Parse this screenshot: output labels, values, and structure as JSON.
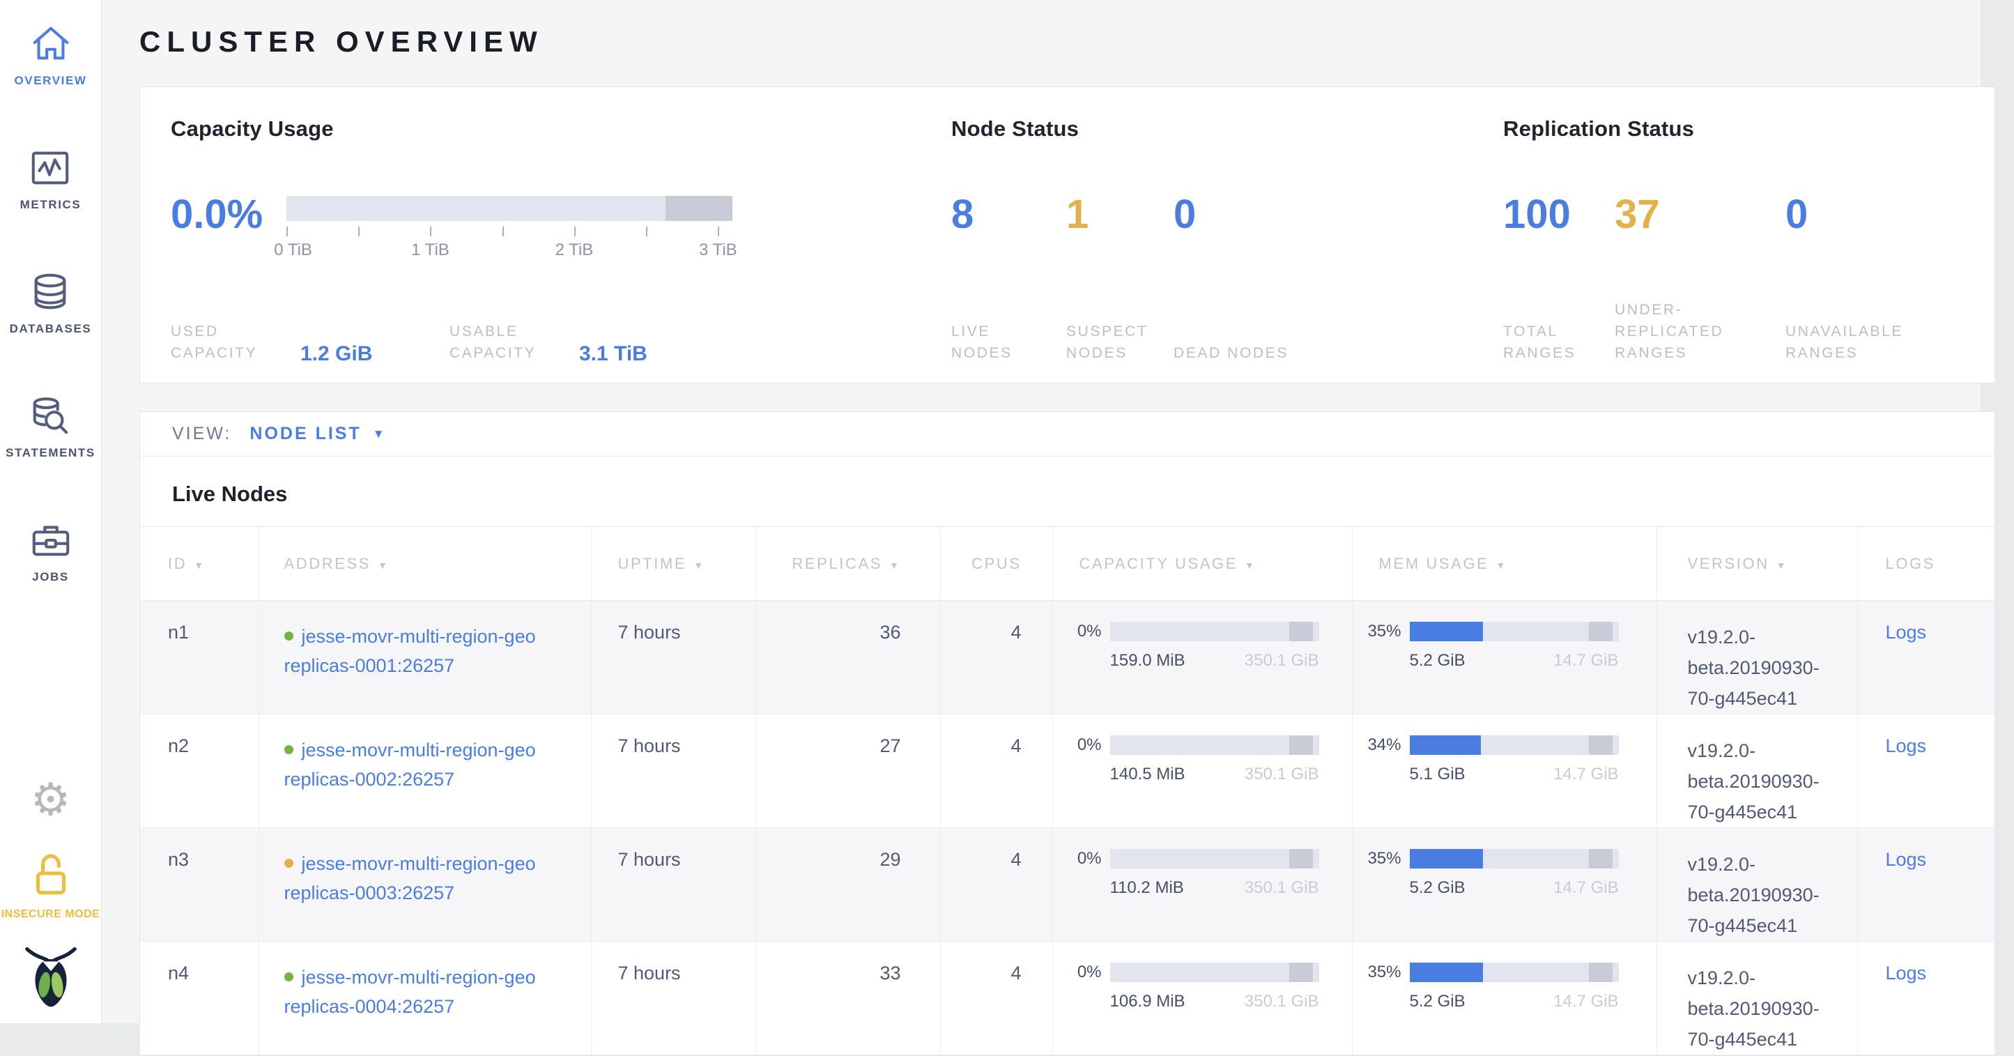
{
  "colors": {
    "accent_blue": "#4a7de2",
    "warning_yellow": "#e2b14b",
    "success_green": "#76b441",
    "insecure_yellow": "#ecbe3d"
  },
  "icons": {
    "sort": "▼",
    "caret": "▼",
    "gear": "⚙"
  },
  "page": {
    "title": "CLUSTER OVERVIEW"
  },
  "sidebar": {
    "items": [
      {
        "label": "OVERVIEW"
      },
      {
        "label": "METRICS"
      },
      {
        "label": "DATABASES"
      },
      {
        "label": "STATEMENTS"
      },
      {
        "label": "JOBS"
      }
    ],
    "insecure_label": "INSECURE MODE"
  },
  "summary": {
    "capacity": {
      "title": "Capacity Usage",
      "used_percent": "0.0%",
      "tick_labels": [
        "0 TiB",
        "1 TiB",
        "2 TiB",
        "3 TiB"
      ],
      "used_label": "USED CAPACITY",
      "used_value": "1.2 GiB",
      "usable_label": "USABLE CAPACITY",
      "usable_value": "3.1 TiB"
    },
    "nodes": {
      "title": "Node Status",
      "stats": [
        {
          "value": "8",
          "label": "LIVE NODES",
          "color": "blue"
        },
        {
          "value": "1",
          "label": "SUSPECT NODES",
          "color": "yellow"
        },
        {
          "value": "0",
          "label": "DEAD NODES",
          "color": "blue"
        }
      ]
    },
    "replication": {
      "title": "Replication Status",
      "stats": [
        {
          "value": "100",
          "label": "TOTAL RANGES",
          "color": "blue"
        },
        {
          "value": "37",
          "label": "UNDER-REPLICATED RANGES",
          "color": "yellow"
        },
        {
          "value": "0",
          "label": "UNAVAILABLE RANGES",
          "color": "blue"
        }
      ]
    }
  },
  "view_bar": {
    "label": "VIEW:",
    "selected": "NODE LIST"
  },
  "table": {
    "title": "Live Nodes",
    "columns": [
      {
        "label": "ID"
      },
      {
        "label": "ADDRESS"
      },
      {
        "label": "UPTIME"
      },
      {
        "label": "REPLICAS"
      },
      {
        "label": "CPUS"
      },
      {
        "label": "CAPACITY USAGE"
      },
      {
        "label": "MEM USAGE"
      },
      {
        "label": "VERSION"
      },
      {
        "label": "LOGS"
      }
    ],
    "rows": [
      {
        "id": "n1",
        "status": "live",
        "address": "jesse-movr-multi-region-georeplicas-0001:26257",
        "uptime": "7 hours",
        "replicas": "36",
        "cpus": "4",
        "capacity_pct": "0%",
        "capacity_used": "159.0 MiB",
        "capacity_total": "350.1 GiB",
        "mem_pct": "35%",
        "mem_used": "5.2 GiB",
        "mem_total": "14.7 GiB",
        "version": "v19.2.0-beta.20190930-70-g445ec41",
        "logs": "Logs"
      },
      {
        "id": "n2",
        "status": "live",
        "address": "jesse-movr-multi-region-georeplicas-0002:26257",
        "uptime": "7 hours",
        "replicas": "27",
        "cpus": "4",
        "capacity_pct": "0%",
        "capacity_used": "140.5 MiB",
        "capacity_total": "350.1 GiB",
        "mem_pct": "34%",
        "mem_used": "5.1 GiB",
        "mem_total": "14.7 GiB",
        "version": "v19.2.0-beta.20190930-70-g445ec41",
        "logs": "Logs"
      },
      {
        "id": "n3",
        "status": "suspect",
        "address": "jesse-movr-multi-region-georeplicas-0003:26257",
        "uptime": "7 hours",
        "replicas": "29",
        "cpus": "4",
        "capacity_pct": "0%",
        "capacity_used": "110.2 MiB",
        "capacity_total": "350.1 GiB",
        "mem_pct": "35%",
        "mem_used": "5.2 GiB",
        "mem_total": "14.7 GiB",
        "version": "v19.2.0-beta.20190930-70-g445ec41",
        "logs": "Logs"
      },
      {
        "id": "n4",
        "status": "live",
        "address": "jesse-movr-multi-region-georeplicas-0004:26257",
        "uptime": "7 hours",
        "replicas": "33",
        "cpus": "4",
        "capacity_pct": "0%",
        "capacity_used": "106.9 MiB",
        "capacity_total": "350.1 GiB",
        "mem_pct": "35%",
        "mem_used": "5.2 GiB",
        "mem_total": "14.7 GiB",
        "version": "v19.2.0-beta.20190930-70-g445ec41",
        "logs": "Logs"
      }
    ]
  }
}
